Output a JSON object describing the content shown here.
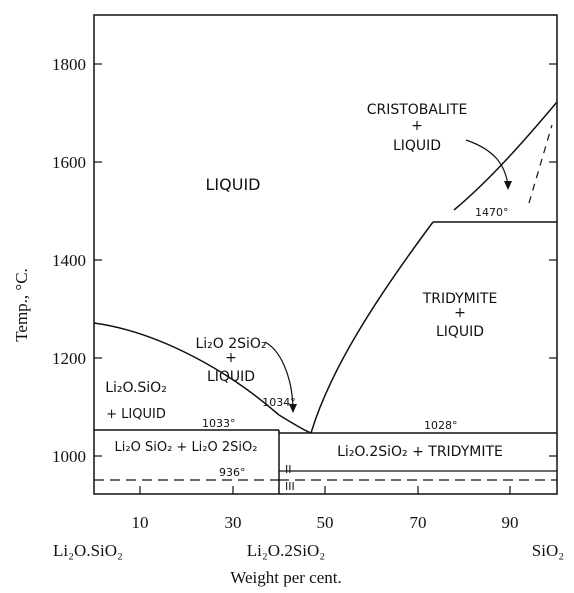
{
  "axes": {
    "y_title": "Temp., °C.",
    "x_title": "Weight per cent.",
    "y_ticks": [
      {
        "value": 1000,
        "label": "1000"
      },
      {
        "value": 1200,
        "label": "1200"
      },
      {
        "value": 1400,
        "label": "1400"
      },
      {
        "value": 1600,
        "label": "1600"
      },
      {
        "value": 1800,
        "label": "1800"
      }
    ],
    "x_ticks": [
      {
        "value": 10,
        "label": "10"
      },
      {
        "value": 30,
        "label": "30"
      },
      {
        "value": 50,
        "label": "50"
      },
      {
        "value": 70,
        "label": "70"
      },
      {
        "value": 90,
        "label": "90"
      }
    ],
    "compounds": {
      "left": "Li₂O.SiO₂",
      "middle": "Li₂O.2SiO₂",
      "right": "SiO₂"
    },
    "ylim": [
      900,
      1900
    ],
    "xlim": [
      0,
      100
    ]
  },
  "regions": {
    "liquid": "LIQUID",
    "cristobalite": [
      "CRISTOBALITE",
      "+",
      "LIQUID"
    ],
    "tridymite": [
      "TRIDYMITE",
      "+",
      "LIQUID"
    ],
    "disilicate_liquid": [
      "Li₂O 2SiO₂",
      "+",
      "LIQUID"
    ],
    "metasilicate_liquid": [
      "Li₂O.SiO₂",
      "+ LIQUID"
    ],
    "meta_di": "Li₂O SiO₂ + Li₂O 2SiO₂",
    "di_tridymite": "Li₂O.2SiO₂ + TRIDYMITE",
    "phase_II": "II",
    "phase_III": "III"
  },
  "temperatures": {
    "t1470": "1470°",
    "t1034": "1034°",
    "t1033": "1033°",
    "t1028": "1028°",
    "t936": "936°"
  }
}
